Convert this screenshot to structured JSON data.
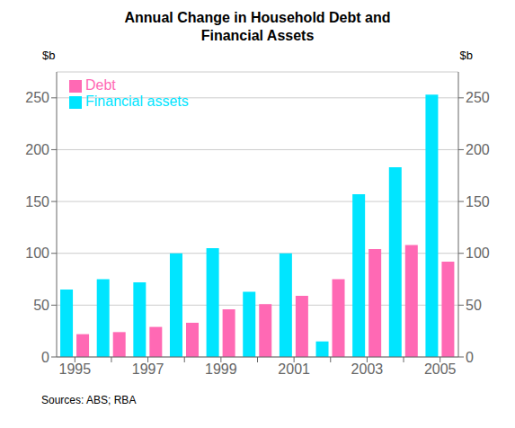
{
  "chart_data": {
    "type": "bar",
    "title": "Annual Change in Household Debt and\nFinancial Assets",
    "categories": [
      "1995",
      null,
      "1997",
      null,
      "1999",
      null,
      "2001",
      null,
      "2003",
      null,
      "2005"
    ],
    "series": [
      {
        "name": "Financial assets",
        "color": "#00E5FF",
        "values": [
          65,
          75,
          72,
          100,
          105,
          63,
          100,
          15,
          157,
          183,
          253
        ]
      },
      {
        "name": "Debt",
        "color": "#FF69B4",
        "values": [
          22,
          24,
          29,
          33,
          46,
          51,
          59,
          75,
          104,
          108,
          92
        ]
      }
    ],
    "ylim": [
      0,
      275
    ],
    "yticks": [
      0,
      50,
      100,
      150,
      200,
      250
    ],
    "y2lim": [
      0,
      275
    ],
    "y2ticks": [
      0,
      50,
      100,
      150,
      200,
      250
    ],
    "ylabel": "$b",
    "y2label": "$b",
    "annotations": [
      "Sources: ABS; RBA"
    ],
    "grid": true,
    "legend": "upper left"
  }
}
